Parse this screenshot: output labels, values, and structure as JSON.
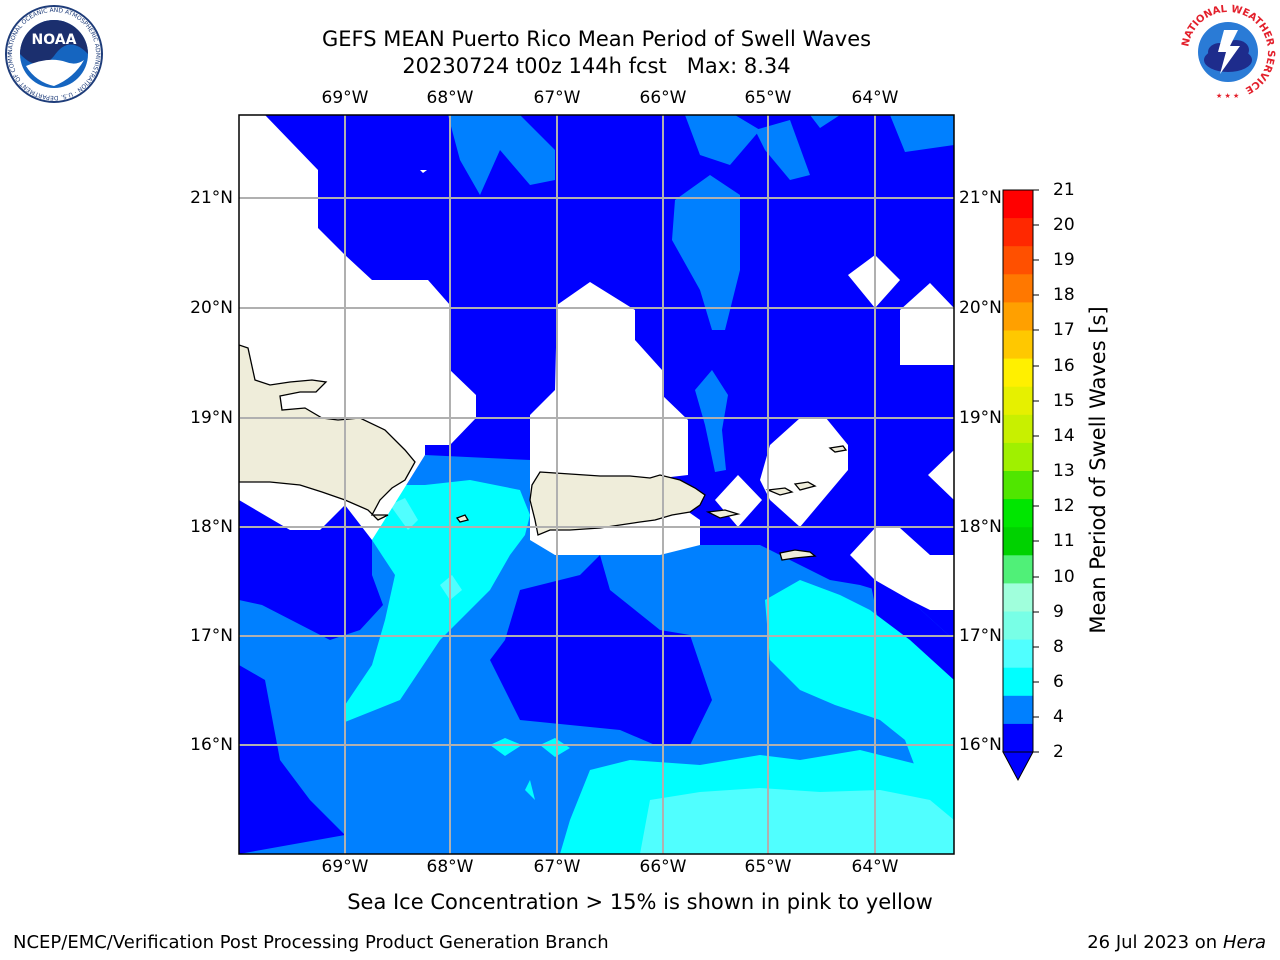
{
  "header": {
    "title_line1": "GEFS MEAN Puerto Rico Mean Period of Swell Waves",
    "title_line2": "20230724 t00z 144h fcst   Max: 8.34"
  },
  "logos": {
    "noaa_text": "NOAA",
    "noaa_ring": "NATIONAL OCEANIC AND ATMOSPHERIC ADMINISTRATION · U.S. DEPARTMENT OF COMMERCE",
    "nws_ring": "NATIONAL WEATHER SERVICE"
  },
  "map": {
    "lon_ticks": [
      "69°W",
      "68°W",
      "67°W",
      "66°W",
      "65°W",
      "64°W"
    ],
    "lat_ticks": [
      "21°N",
      "20°N",
      "19°N",
      "18°N",
      "17°N",
      "16°N"
    ],
    "gridlines": true
  },
  "colorbar": {
    "label": "Mean Period of Swell Waves [s]",
    "ticks": [
      "21",
      "20",
      "19",
      "18",
      "17",
      "16",
      "15",
      "14",
      "13",
      "12",
      "11",
      "10",
      "9",
      "8",
      "6",
      "4",
      "2"
    ],
    "colors": [
      "#ff0000",
      "#ff2800",
      "#ff5000",
      "#ff7800",
      "#ffa000",
      "#ffc800",
      "#fff000",
      "#e6f000",
      "#c8f000",
      "#a0f000",
      "#50e600",
      "#00e600",
      "#00d200",
      "#50f078",
      "#a0ffdc",
      "#78ffe6",
      "#50ffff",
      "#00ffff",
      "#0080ff",
      "#0000ff"
    ],
    "extend": "min"
  },
  "chart_data": {
    "type": "heatmap",
    "field": "Mean Period of Swell Waves",
    "units": "s",
    "max": 8.34,
    "levels": [
      2,
      4,
      6,
      8,
      9,
      10,
      11,
      12,
      13,
      14,
      15,
      16,
      17,
      18,
      19,
      20,
      21
    ],
    "lon_range": [
      -70.0,
      -63.3
    ],
    "lat_range": [
      15.0,
      21.75
    ]
  },
  "note": "Sea Ice Concentration > 15% is shown in pink to yellow",
  "footer": {
    "left": "NCEP/EMC/Verification Post Processing Product Generation Branch",
    "right_date": "26 Jul 2023 on ",
    "right_host": "Hera"
  }
}
